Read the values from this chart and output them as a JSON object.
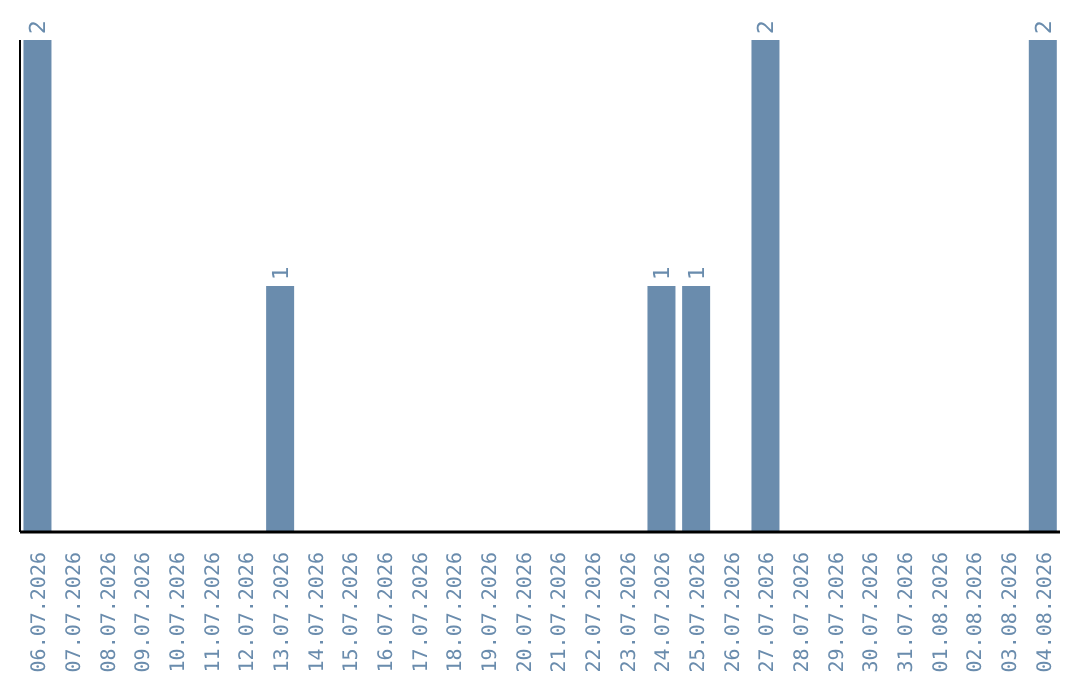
{
  "chart_data": {
    "type": "bar",
    "categories": [
      "06.07.2026",
      "07.07.2026",
      "08.07.2026",
      "09.07.2026",
      "10.07.2026",
      "11.07.2026",
      "12.07.2026",
      "13.07.2026",
      "14.07.2026",
      "15.07.2026",
      "16.07.2026",
      "17.07.2026",
      "18.07.2026",
      "19.07.2026",
      "20.07.2026",
      "21.07.2026",
      "22.07.2026",
      "23.07.2026",
      "24.07.2026",
      "25.07.2026",
      "26.07.2026",
      "27.07.2026",
      "28.07.2026",
      "29.07.2026",
      "30.07.2026",
      "31.07.2026",
      "01.08.2026",
      "02.08.2026",
      "03.08.2026",
      "04.08.2026"
    ],
    "values": [
      2,
      0,
      0,
      0,
      0,
      0,
      0,
      1,
      0,
      0,
      0,
      0,
      0,
      0,
      0,
      0,
      0,
      0,
      1,
      1,
      0,
      2,
      0,
      0,
      0,
      0,
      0,
      0,
      0,
      2
    ],
    "value_labels": [
      "2",
      null,
      null,
      null,
      null,
      null,
      null,
      "1",
      null,
      null,
      null,
      null,
      null,
      null,
      null,
      null,
      null,
      null,
      "1",
      "1",
      null,
      "2",
      null,
      null,
      null,
      null,
      null,
      null,
      null,
      "2"
    ],
    "color": "#6a8cad",
    "ylim": [
      0,
      2
    ],
    "grid": false,
    "legend": false,
    "tick_labels": "x"
  }
}
